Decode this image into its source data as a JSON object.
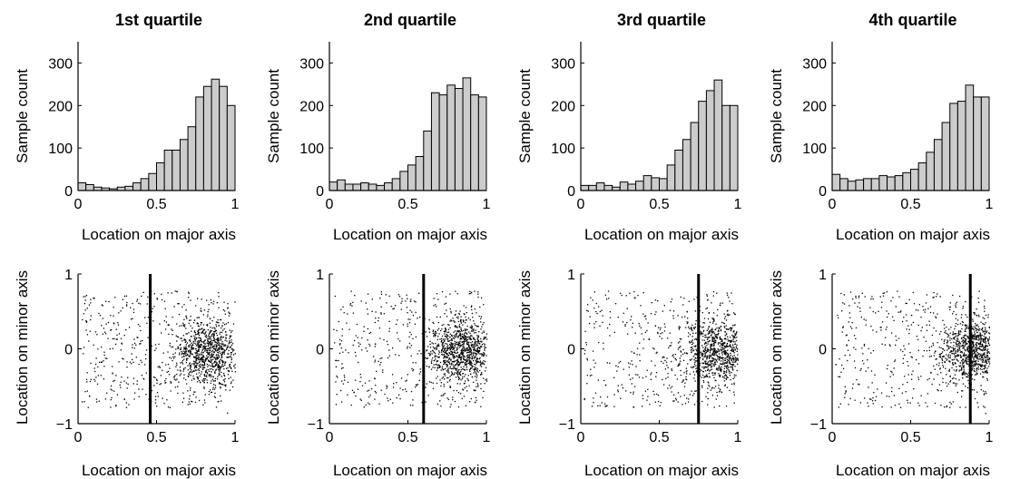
{
  "figure": {
    "panel_titles": [
      "1st quartile",
      "2nd quartile",
      "3rd quartile",
      "4th quartile"
    ]
  },
  "chart_data": [
    {
      "type": "bar",
      "title": "1st quartile",
      "xlabel": "Location on major axis",
      "ylabel": "Sample count",
      "xlim": [
        0,
        1
      ],
      "ylim": [
        0,
        350
      ],
      "xticks": [
        "0",
        "0.5",
        "1"
      ],
      "yticks": [
        "0",
        "100",
        "200",
        "300"
      ],
      "bin_width": 0.05,
      "x": [
        0.025,
        0.075,
        0.125,
        0.175,
        0.225,
        0.275,
        0.325,
        0.375,
        0.425,
        0.475,
        0.525,
        0.575,
        0.625,
        0.675,
        0.725,
        0.775,
        0.825,
        0.875,
        0.925,
        0.975
      ],
      "values": [
        18,
        14,
        8,
        6,
        4,
        8,
        10,
        18,
        28,
        40,
        65,
        95,
        95,
        120,
        150,
        220,
        245,
        262,
        245,
        200
      ]
    },
    {
      "type": "bar",
      "title": "2nd quartile",
      "xlabel": "Location on major axis",
      "ylabel": "Sample count",
      "xlim": [
        0,
        1
      ],
      "ylim": [
        0,
        350
      ],
      "xticks": [
        "0",
        "0.5",
        "1"
      ],
      "yticks": [
        "0",
        "100",
        "200",
        "300"
      ],
      "bin_width": 0.05,
      "x": [
        0.025,
        0.075,
        0.125,
        0.175,
        0.225,
        0.275,
        0.325,
        0.375,
        0.425,
        0.475,
        0.525,
        0.575,
        0.625,
        0.675,
        0.725,
        0.775,
        0.825,
        0.875,
        0.925,
        0.975
      ],
      "values": [
        20,
        25,
        15,
        15,
        18,
        15,
        12,
        18,
        28,
        45,
        60,
        80,
        140,
        230,
        225,
        248,
        240,
        265,
        225,
        220
      ]
    },
    {
      "type": "bar",
      "title": "3rd quartile",
      "xlabel": "Location on major axis",
      "ylabel": "Sample count",
      "xlim": [
        0,
        1
      ],
      "ylim": [
        0,
        350
      ],
      "xticks": [
        "0",
        "0.5",
        "1"
      ],
      "yticks": [
        "0",
        "100",
        "200",
        "300"
      ],
      "bin_width": 0.05,
      "x": [
        0.025,
        0.075,
        0.125,
        0.175,
        0.225,
        0.275,
        0.325,
        0.375,
        0.425,
        0.475,
        0.525,
        0.575,
        0.625,
        0.675,
        0.725,
        0.775,
        0.825,
        0.875,
        0.925,
        0.975
      ],
      "values": [
        12,
        12,
        18,
        12,
        8,
        20,
        15,
        22,
        35,
        30,
        28,
        60,
        95,
        120,
        160,
        210,
        235,
        260,
        200,
        200
      ]
    },
    {
      "type": "bar",
      "title": "4th quartile",
      "xlabel": "Location on major axis",
      "ylabel": "Sample count",
      "xlim": [
        0,
        1
      ],
      "ylim": [
        0,
        350
      ],
      "xticks": [
        "0",
        "0.5",
        "1"
      ],
      "yticks": [
        "0",
        "100",
        "200",
        "300"
      ],
      "bin_width": 0.05,
      "x": [
        0.025,
        0.075,
        0.125,
        0.175,
        0.225,
        0.275,
        0.325,
        0.375,
        0.425,
        0.475,
        0.525,
        0.575,
        0.625,
        0.675,
        0.725,
        0.775,
        0.825,
        0.875,
        0.925,
        0.975
      ],
      "values": [
        38,
        28,
        22,
        25,
        28,
        28,
        35,
        32,
        35,
        42,
        50,
        65,
        90,
        120,
        160,
        205,
        210,
        248,
        220,
        220
      ]
    },
    {
      "type": "scatter",
      "xlabel": "Location on major axis",
      "ylabel": "Location on minor axis",
      "xlim": [
        0,
        1
      ],
      "ylim": [
        -1,
        1
      ],
      "xticks": [
        "0",
        "0.5",
        "1"
      ],
      "yticks": [
        "−1",
        "0",
        "1"
      ],
      "vline": 0.46,
      "point_count": 1350,
      "cluster_center": [
        0.82,
        -0.05
      ],
      "marker_color": "#000000"
    },
    {
      "type": "scatter",
      "xlabel": "Location on major axis",
      "ylabel": "Location on minor axis",
      "xlim": [
        0,
        1
      ],
      "ylim": [
        -1,
        1
      ],
      "xticks": [
        "0",
        "0.5",
        "1"
      ],
      "yticks": [
        "−1",
        "0",
        "1"
      ],
      "vline": 0.6,
      "point_count": 1350,
      "cluster_center": [
        0.84,
        -0.02
      ],
      "marker_color": "#000000"
    },
    {
      "type": "scatter",
      "xlabel": "Location on major axis",
      "ylabel": "Location on minor axis",
      "xlim": [
        0,
        1
      ],
      "ylim": [
        -1,
        1
      ],
      "xticks": [
        "0",
        "0.5",
        "1"
      ],
      "yticks": [
        "−1",
        "0",
        "1"
      ],
      "vline": 0.75,
      "point_count": 1250,
      "cluster_center": [
        0.87,
        -0.03
      ],
      "marker_color": "#000000"
    },
    {
      "type": "scatter",
      "xlabel": "Location on major axis",
      "ylabel": "Location on minor axis",
      "xlim": [
        0,
        1
      ],
      "ylim": [
        -1,
        1
      ],
      "xticks": [
        "0",
        "0.5",
        "1"
      ],
      "yticks": [
        "−1",
        "0",
        "1"
      ],
      "vline": 0.88,
      "point_count": 1350,
      "cluster_center": [
        0.9,
        -0.02
      ],
      "marker_color": "#000000"
    }
  ],
  "colors": {
    "bar_fill": "#cccccc",
    "bar_edge": "#000000",
    "axis": "#000000",
    "vline": "#000000",
    "points": "#000000"
  }
}
